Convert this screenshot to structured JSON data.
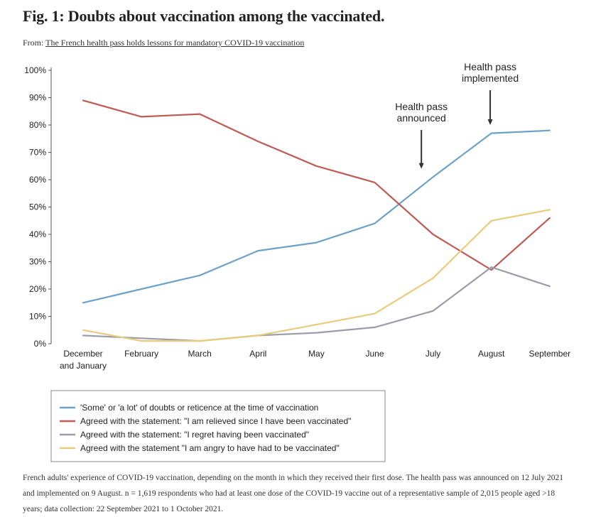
{
  "figure": {
    "title": "Fig. 1: Doubts about vaccination among the vaccinated.",
    "from_prefix": "From:",
    "from_link": "The French health pass holds lessons for mandatory COVID-19 vaccination",
    "caption": "French adults' experience of COVID-19 vaccination, depending on the month in which they received their first dose. The health pass was announced on 12 July 2021 and implemented on 9 August. n = 1,619 respondents who had at least one dose of the COVID-19 vaccine out of a representative sample of 2,015 people aged >18 years; data collection: 22 September 2021 to 1 October 2021."
  },
  "chart_data": {
    "type": "line",
    "title": "",
    "xlabel": "",
    "ylabel": "",
    "ylim": [
      0,
      100
    ],
    "yticks": [
      "0%",
      "10%",
      "20%",
      "30%",
      "40%",
      "50%",
      "60%",
      "70%",
      "80%",
      "90%",
      "100%"
    ],
    "categories": [
      [
        "December",
        "and January"
      ],
      [
        "February"
      ],
      [
        "March"
      ],
      [
        "April"
      ],
      [
        "May"
      ],
      [
        "June"
      ],
      [
        "July"
      ],
      [
        "August"
      ],
      [
        "September"
      ]
    ],
    "series": [
      {
        "name": "'Some' or 'a lot' of doubts or reticence at the time of vaccination",
        "color": "#6ea1c8",
        "values": [
          15,
          20,
          25,
          34,
          37,
          44,
          61,
          77,
          78
        ]
      },
      {
        "name": "Agreed with the statement: \"I am relieved since I have been vaccinated\"",
        "color": "#bf5b57",
        "values": [
          89,
          83,
          84,
          74,
          65,
          59,
          40,
          27,
          46
        ]
      },
      {
        "name": "Agreed with the statement: \"I regret having been vaccinated\"",
        "color": "#9b9caa",
        "values": [
          3,
          2,
          1,
          3,
          4,
          6,
          12,
          28,
          21
        ]
      },
      {
        "name": "Agreed with the statement \"I am angry to have had to be vaccinated\"",
        "color": "#e8cb7c",
        "values": [
          5,
          1,
          1,
          3,
          7,
          11,
          24,
          45,
          49
        ]
      }
    ],
    "annotations": [
      {
        "text": [
          "Health pass",
          "announced"
        ],
        "x": 5.8,
        "arrow_to_y": 64
      },
      {
        "text": [
          "Health pass",
          "implemented"
        ],
        "x": 6.98,
        "arrow_to_y": 80
      }
    ],
    "legend_position": "bottom-left"
  }
}
